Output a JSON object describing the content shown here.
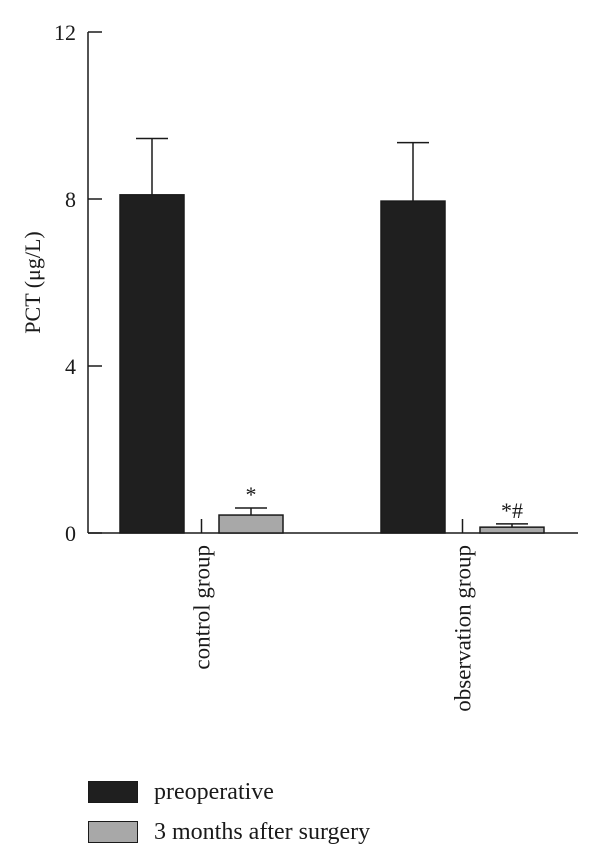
{
  "chart_data": {
    "type": "bar",
    "ylabel": "PCT (μg/L)",
    "ylim": [
      0,
      12
    ],
    "yticks": [
      0,
      4,
      8,
      12
    ],
    "categories": [
      "control group",
      "observation group"
    ],
    "series": [
      {
        "name": "preoperative",
        "values": [
          8.1,
          7.95
        ],
        "errors": [
          1.35,
          1.4
        ],
        "color": "#1f1f1f"
      },
      {
        "name": "3 months after surgery",
        "values": [
          0.43,
          0.14
        ],
        "errors": [
          0.17,
          0.08
        ],
        "color": "#a8a8a8"
      }
    ],
    "annotations": [
      {
        "category": "control group",
        "series": "3 months after surgery",
        "text": "*"
      },
      {
        "category": "observation group",
        "series": "3 months after surgery",
        "text": "*#"
      }
    ],
    "grid": false,
    "legend_position": "bottom-left"
  }
}
